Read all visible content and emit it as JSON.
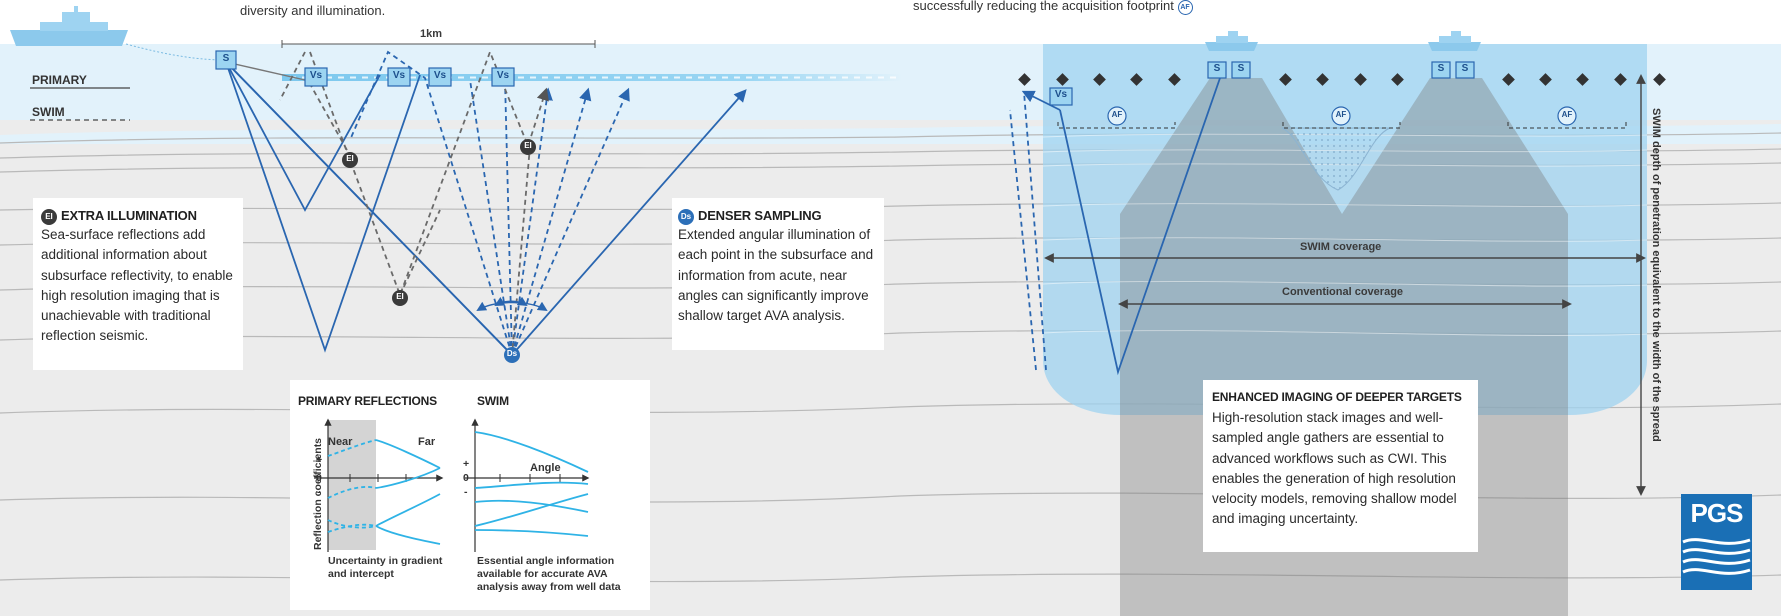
{
  "top": {
    "left_caption": "diversity and illumination.",
    "right_caption": "successfully reducing the acquisition footprint",
    "right_caption_badge": "AF",
    "scale_label": "1km"
  },
  "legend": {
    "primary": "PRIMARY",
    "swim": "SWIM"
  },
  "badges": {
    "source": "S",
    "virtual_source": "Vs",
    "extra_illumination": "EI",
    "denser_sampling": "Ds",
    "acquisition_footprint": "AF"
  },
  "extra_illumination": {
    "badge": "EI",
    "title": "EXTRA ILLUMINATION",
    "body": "Sea-surface reflections add additional information about subsurface reflectivity, to enable high resolution imaging that is unachievable with traditional reflection seismic."
  },
  "denser_sampling": {
    "badge": "Ds",
    "title": "DENSER SAMPLING",
    "body": "Extended angular illumination of each point in the subsurface and information from acute, near angles can significantly improve shallow target AVA analysis."
  },
  "enhanced_imaging": {
    "title": "ENHANCED IMAGING OF DEEPER TARGETS",
    "body": "High-resolution stack images and well-sampled angle gathers are essential to advanced workflows such as CWI. This enables the generation of high resolution velocity models, removing shallow model and imaging uncertainty."
  },
  "coverage": {
    "swim": "SWIM coverage",
    "conventional": "Conventional coverage",
    "vertical": "SWIM depth of penetration equivalent to the width of the spread"
  },
  "inset": {
    "primary_title": "PRIMARY REFLECTIONS",
    "swim_title": "SWIM",
    "y_axis": "Reflection coefficients",
    "near": "Near",
    "far": "Far",
    "angle": "Angle",
    "plus": "+",
    "zero": "0",
    "minus": "-",
    "primary_caption": "Uncertainty in gradient and intercept",
    "swim_caption": "Essential angle information available for accurate AVA analysis away from well data"
  },
  "logo": {
    "text": "PGS"
  },
  "colors": {
    "water": "#e2f2fb",
    "swim_panel": "#9fd3f0",
    "ray_blue": "#2a66b0",
    "ray_grey": "#6a6a6a",
    "cyan_curve": "#2fb3e6",
    "logo": "#1a6fb5"
  }
}
